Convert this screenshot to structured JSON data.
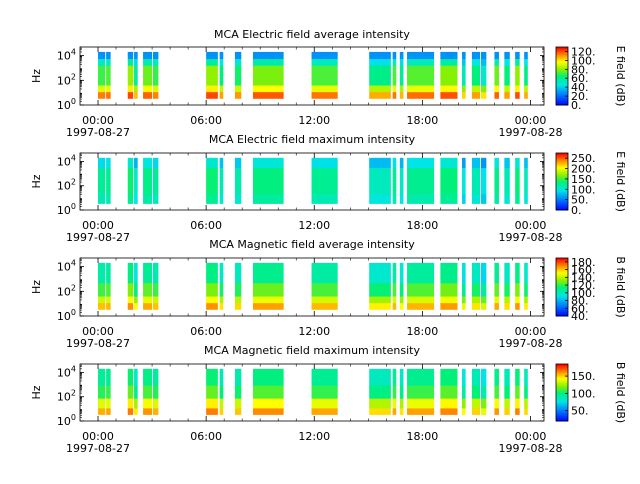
{
  "chart_data": [
    {
      "type": "heatmap",
      "title": "MCA  Electric field average intensity",
      "ylabel": "Hz",
      "y_scale": "log",
      "ylim_hz": [
        1,
        50000
      ],
      "y_ticks": [
        {
          "exp": "0"
        },
        {
          "exp": "2"
        },
        {
          "exp": "4"
        }
      ],
      "x_ticks": [
        "00:00",
        "06:00",
        "12:00",
        "18:00",
        "00:00"
      ],
      "x_dates": [
        "1997-08-27",
        "1997-08-28"
      ],
      "colorbar": {
        "label": "E field (dB)",
        "ticks": [
          "0.",
          "20.",
          "40.",
          "60.",
          "80.",
          "100.",
          "120."
        ],
        "range": [
          0,
          130
        ]
      },
      "data_blocks_hours": [
        [
          0.0,
          0.4
        ],
        [
          0.45,
          0.7
        ],
        [
          1.65,
          1.95
        ],
        [
          2.0,
          2.2
        ],
        [
          2.5,
          3.0
        ],
        [
          3.05,
          3.35
        ],
        [
          6.0,
          6.65
        ],
        [
          6.75,
          6.95
        ],
        [
          7.6,
          7.95
        ],
        [
          8.6,
          10.3
        ],
        [
          11.85,
          13.3
        ],
        [
          15.05,
          16.25
        ],
        [
          16.35,
          16.55
        ],
        [
          16.75,
          16.95
        ],
        [
          17.15,
          18.65
        ],
        [
          19.0,
          19.95
        ],
        [
          20.2,
          20.4
        ],
        [
          20.75,
          21.2
        ],
        [
          21.25,
          21.55
        ],
        [
          22.0,
          22.25
        ],
        [
          22.55,
          22.85
        ],
        [
          23.15,
          23.4
        ],
        [
          23.65,
          23.85
        ]
      ]
    },
    {
      "type": "heatmap",
      "title": "MCA  Electric field maximum intensity",
      "ylabel": "Hz",
      "y_scale": "log",
      "ylim_hz": [
        1,
        50000
      ],
      "y_ticks": [
        {
          "exp": "0"
        },
        {
          "exp": "2"
        },
        {
          "exp": "4"
        }
      ],
      "x_ticks": [
        "00:00",
        "06:00",
        "12:00",
        "18:00",
        "00:00"
      ],
      "x_dates": [
        "1997-08-27",
        "1997-08-28"
      ],
      "colorbar": {
        "label": "E field (dB)",
        "ticks": [
          "0.",
          "50.",
          "100.",
          "150.",
          "200.",
          "250."
        ],
        "range": [
          0,
          275
        ]
      },
      "data_blocks_hours": [
        [
          0.0,
          0.4
        ],
        [
          0.45,
          0.7
        ],
        [
          1.65,
          1.95
        ],
        [
          2.0,
          2.2
        ],
        [
          2.5,
          3.0
        ],
        [
          3.05,
          3.35
        ],
        [
          6.0,
          6.65
        ],
        [
          6.75,
          6.95
        ],
        [
          7.6,
          7.95
        ],
        [
          8.6,
          10.3
        ],
        [
          11.85,
          13.3
        ],
        [
          15.05,
          16.25
        ],
        [
          16.35,
          16.55
        ],
        [
          16.75,
          16.95
        ],
        [
          17.15,
          18.65
        ],
        [
          19.0,
          19.95
        ],
        [
          20.2,
          20.4
        ],
        [
          20.75,
          21.2
        ],
        [
          21.25,
          21.55
        ],
        [
          22.0,
          22.25
        ],
        [
          22.55,
          22.85
        ],
        [
          23.15,
          23.4
        ],
        [
          23.65,
          23.85
        ]
      ]
    },
    {
      "type": "heatmap",
      "title": "MCA  Magnetic field average intensity",
      "ylabel": "Hz",
      "y_scale": "log",
      "ylim_hz": [
        1,
        50000
      ],
      "y_ticks": [
        {
          "exp": "0"
        },
        {
          "exp": "2"
        },
        {
          "exp": "4"
        }
      ],
      "x_ticks": [
        "00:00",
        "06:00",
        "12:00",
        "18:00",
        "00:00"
      ],
      "x_dates": [
        "1997-08-27",
        "1997-08-28"
      ],
      "colorbar": {
        "label": "B field (dB)",
        "ticks": [
          "40.",
          "60.",
          "80.",
          "100.",
          "120.",
          "140.",
          "160.",
          "180."
        ],
        "range": [
          40,
          190
        ]
      },
      "data_blocks_hours": [
        [
          0.0,
          0.4
        ],
        [
          0.45,
          0.7
        ],
        [
          1.65,
          1.95
        ],
        [
          2.0,
          2.2
        ],
        [
          2.5,
          3.0
        ],
        [
          3.05,
          3.35
        ],
        [
          6.0,
          6.65
        ],
        [
          6.75,
          6.95
        ],
        [
          7.6,
          7.95
        ],
        [
          8.6,
          10.3
        ],
        [
          11.85,
          13.3
        ],
        [
          15.05,
          16.25
        ],
        [
          16.35,
          16.55
        ],
        [
          16.75,
          16.95
        ],
        [
          17.15,
          18.65
        ],
        [
          19.0,
          19.95
        ],
        [
          20.2,
          20.4
        ],
        [
          20.75,
          21.2
        ],
        [
          21.25,
          21.55
        ],
        [
          22.0,
          22.25
        ],
        [
          22.55,
          22.85
        ],
        [
          23.15,
          23.4
        ],
        [
          23.65,
          23.85
        ]
      ]
    },
    {
      "type": "heatmap",
      "title": "MCA  Magnetic field maximum intensity",
      "ylabel": "Hz",
      "y_scale": "log",
      "ylim_hz": [
        1,
        50000
      ],
      "y_ticks": [
        {
          "exp": "0"
        },
        {
          "exp": "2"
        },
        {
          "exp": "4"
        }
      ],
      "x_ticks": [
        "00:00",
        "06:00",
        "12:00",
        "18:00",
        "00:00"
      ],
      "x_dates": [
        "1997-08-27",
        "1997-08-28"
      ],
      "colorbar": {
        "label": "B field (dB)",
        "ticks": [
          "50.",
          "100.",
          "150."
        ],
        "range": [
          20,
          185
        ]
      },
      "data_blocks_hours": [
        [
          0.0,
          0.4
        ],
        [
          0.45,
          0.7
        ],
        [
          1.65,
          1.95
        ],
        [
          2.0,
          2.2
        ],
        [
          2.5,
          3.0
        ],
        [
          3.05,
          3.35
        ],
        [
          6.0,
          6.65
        ],
        [
          6.75,
          6.95
        ],
        [
          7.6,
          7.95
        ],
        [
          8.6,
          10.3
        ],
        [
          11.85,
          13.3
        ],
        [
          15.05,
          16.25
        ],
        [
          16.35,
          16.55
        ],
        [
          16.75,
          16.95
        ],
        [
          17.15,
          18.65
        ],
        [
          19.0,
          19.95
        ],
        [
          20.2,
          20.4
        ],
        [
          20.75,
          21.2
        ],
        [
          21.25,
          21.55
        ],
        [
          22.0,
          22.25
        ],
        [
          22.55,
          22.85
        ],
        [
          23.15,
          23.4
        ],
        [
          23.65,
          23.85
        ]
      ]
    }
  ]
}
